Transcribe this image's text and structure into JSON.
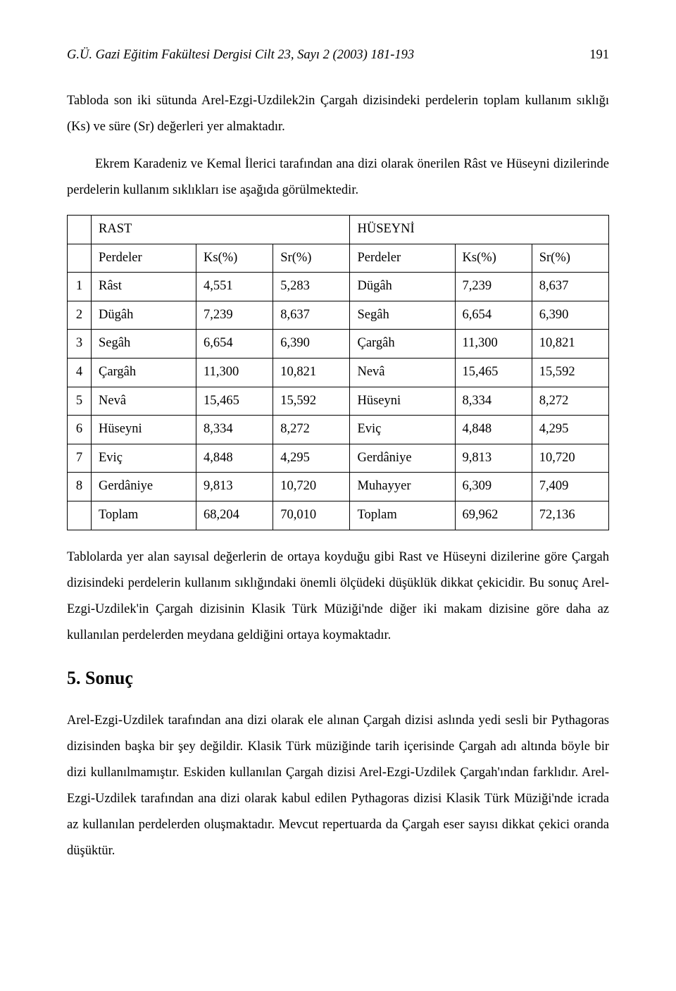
{
  "header": {
    "journal": "G.Ü. Gazi Eğitim Fakültesi Dergisi Cilt 23, Sayı 2 (2003) 181-193",
    "page_number": "191"
  },
  "paragraphs": {
    "p1": "Tabloda son iki sütunda Arel-Ezgi-Uzdilek2in Çargah dizisindeki perdelerin toplam kullanım sıklığı (Ks) ve süre (Sr) değerleri yer almaktadır.",
    "p2": "Ekrem Karadeniz ve Kemal İlerici tarafından ana dizi olarak önerilen Râst ve Hüseyni dizilerinde perdelerin kullanım sıklıkları ise aşağıda görülmektedir.",
    "p3": "Tablolarda yer alan sayısal değerlerin de ortaya koyduğu gibi Rast ve Hüseyni dizilerine göre Çargah dizisindeki perdelerin kullanım sıklığındaki önemli ölçüdeki düşüklük dikkat çekicidir. Bu sonuç Arel-Ezgi-Uzdilek'in Çargah dizisinin Klasik Türk Müziği'nde diğer iki makam dizisine göre daha az kullanılan perdelerden meydana geldiğini ortaya koymaktadır.",
    "p4": "Arel-Ezgi-Uzdilek tarafından ana dizi olarak ele alınan Çargah dizisi aslında yedi sesli bir Pythagoras dizisinden başka bir şey değildir. Klasik Türk müziğinde tarih içerisinde Çargah adı altında böyle bir dizi kullanılmamıştır. Eskiden kullanılan Çargah dizisi Arel-Ezgi-Uzdilek Çargah'ından farklıdır. Arel-Ezgi-Uzdilek tarafından ana dizi olarak kabul edilen Pythagoras dizisi Klasik Türk Müziği'nde icrada az kullanılan perdelerden oluşmaktadır. Mevcut repertuarda da Çargah eser sayısı dikkat çekici oranda düşüktür."
  },
  "section_heading": "5. Sonuç",
  "table": {
    "left_title": "RAST",
    "right_title": "HÜSEYNİ",
    "col_headers": {
      "perdeler": "Perdeler",
      "ks": "Ks(%)",
      "sr": "Sr(%)"
    },
    "rows": [
      {
        "idx": "1",
        "lp": "Râst",
        "lks": "4,551",
        "lsr": "5,283",
        "rp": "Dügâh",
        "rks": "7,239",
        "rsr": "8,637"
      },
      {
        "idx": "2",
        "lp": "Dügâh",
        "lks": "7,239",
        "lsr": "8,637",
        "rp": "Segâh",
        "rks": "6,654",
        "rsr": "6,390"
      },
      {
        "idx": "3",
        "lp": "Segâh",
        "lks": "6,654",
        "lsr": "6,390",
        "rp": "Çargâh",
        "rks": "11,300",
        "rsr": "10,821"
      },
      {
        "idx": "4",
        "lp": "Çargâh",
        "lks": "11,300",
        "lsr": "10,821",
        "rp": "Nevâ",
        "rks": "15,465",
        "rsr": "15,592"
      },
      {
        "idx": "5",
        "lp": "Nevâ",
        "lks": "15,465",
        "lsr": "15,592",
        "rp": "Hüseyni",
        "rks": "8,334",
        "rsr": "8,272"
      },
      {
        "idx": "6",
        "lp": "Hüseyni",
        "lks": "8,334",
        "lsr": "8,272",
        "rp": "Eviç",
        "rks": "4,848",
        "rsr": "4,295"
      },
      {
        "idx": "7",
        "lp": "Eviç",
        "lks": "4,848",
        "lsr": "4,295",
        "rp": "Gerdâniye",
        "rks": "9,813",
        "rsr": "10,720"
      },
      {
        "idx": "8",
        "lp": "Gerdâniye",
        "lks": "9,813",
        "lsr": "10,720",
        "rp": "Muhayyer",
        "rks": "6,309",
        "rsr": "7,409"
      }
    ],
    "total": {
      "label": "Toplam",
      "lks": "68,204",
      "lsr": "70,010",
      "rks": "69,962",
      "rsr": "72,136"
    }
  }
}
